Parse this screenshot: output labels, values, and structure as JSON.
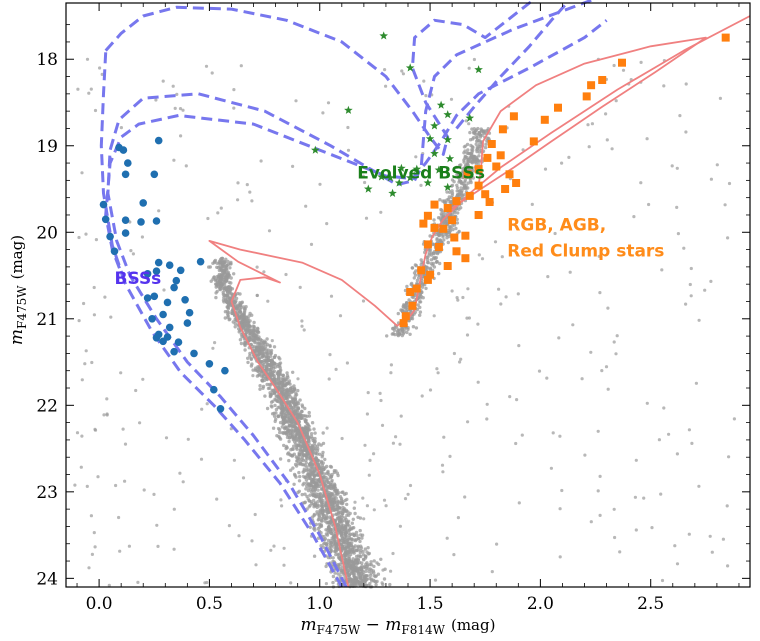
{
  "chart_data": {
    "type": "scatter",
    "xlabel": {
      "m": "m",
      "sub1": "F475W",
      "minus": " − ",
      "m2": "m",
      "sub2": "F814W",
      "unit": "(mag)"
    },
    "ylabel": {
      "m": "m",
      "sub": "F475W",
      "unit": "(mag)"
    },
    "xlim": [
      -0.15,
      2.95
    ],
    "ylim": [
      24.1,
      17.35
    ],
    "y_inverted": true,
    "grid": false,
    "x_ticks": [
      0.0,
      0.5,
      1.0,
      1.5,
      2.0,
      2.5
    ],
    "x_tick_labels": [
      "0.0",
      "0.5",
      "1.0",
      "1.5",
      "2.0",
      "2.5"
    ],
    "y_ticks": [
      18,
      19,
      20,
      21,
      22,
      23,
      24
    ],
    "y_tick_labels": [
      "18",
      "19",
      "20",
      "21",
      "22",
      "23",
      "24"
    ],
    "annotations": {
      "bss": {
        "text": "BSSs",
        "x": 0.07,
        "y": 20.6,
        "color": "#5533ee"
      },
      "evolved": {
        "text": "Evolved BSSs",
        "x": 1.17,
        "y": 19.38,
        "color": "#1a7f1a"
      },
      "rgb1": {
        "text": "RGB, AGB,",
        "x": 1.85,
        "y": 19.98,
        "color": "#ff8c1a"
      },
      "rgb2": {
        "text": "Red Clump stars",
        "x": 1.85,
        "y": 20.28,
        "color": "#ff8c1a"
      }
    },
    "colors": {
      "field": "#9a9a9a",
      "bss": "#1f6fb0",
      "evolved_bss": "#2e8b2e",
      "rgb": "#ff7f0e",
      "red_isochrone": "#f08080",
      "blue_isochrone": "#7777ee"
    },
    "series": [
      {
        "name": "BSSs",
        "marker": "circle",
        "points": [
          [
            0.27,
            18.94
          ],
          [
            0.09,
            19.02
          ],
          [
            0.11,
            19.05
          ],
          [
            0.13,
            19.2
          ],
          [
            0.12,
            19.33
          ],
          [
            0.25,
            19.33
          ],
          [
            0.02,
            19.68
          ],
          [
            0.2,
            19.66
          ],
          [
            0.03,
            19.85
          ],
          [
            0.12,
            19.86
          ],
          [
            0.19,
            19.88
          ],
          [
            0.26,
            19.87
          ],
          [
            0.12,
            20.01
          ],
          [
            0.05,
            20.05
          ],
          [
            0.07,
            20.22
          ],
          [
            0.27,
            20.35
          ],
          [
            0.32,
            20.38
          ],
          [
            0.37,
            20.44
          ],
          [
            0.26,
            20.45
          ],
          [
            0.22,
            20.48
          ],
          [
            0.35,
            20.56
          ],
          [
            0.34,
            20.64
          ],
          [
            0.46,
            20.34
          ],
          [
            0.22,
            20.76
          ],
          [
            0.25,
            20.74
          ],
          [
            0.31,
            20.81
          ],
          [
            0.39,
            20.78
          ],
          [
            0.41,
            20.93
          ],
          [
            0.29,
            20.95
          ],
          [
            0.24,
            21.0
          ],
          [
            0.4,
            21.05
          ],
          [
            0.32,
            21.1
          ],
          [
            0.27,
            21.18
          ],
          [
            0.26,
            21.22
          ],
          [
            0.29,
            21.26
          ],
          [
            0.31,
            21.21
          ],
          [
            0.34,
            21.38
          ],
          [
            0.36,
            21.27
          ],
          [
            0.43,
            21.4
          ],
          [
            0.5,
            21.52
          ],
          [
            0.52,
            21.82
          ],
          [
            0.55,
            22.04
          ],
          [
            0.57,
            21.6
          ]
        ]
      },
      {
        "name": "Evolved BSSs",
        "marker": "star",
        "points": [
          [
            1.29,
            17.73
          ],
          [
            1.41,
            18.1
          ],
          [
            1.72,
            18.12
          ],
          [
            1.13,
            18.59
          ],
          [
            1.55,
            18.53
          ],
          [
            1.58,
            18.64
          ],
          [
            1.68,
            18.68
          ],
          [
            1.52,
            18.77
          ],
          [
            1.5,
            18.92
          ],
          [
            1.58,
            18.93
          ],
          [
            0.98,
            19.05
          ],
          [
            1.52,
            19.09
          ],
          [
            1.59,
            19.15
          ],
          [
            1.37,
            19.26
          ],
          [
            1.44,
            19.27
          ],
          [
            1.54,
            19.28
          ],
          [
            1.28,
            19.36
          ],
          [
            1.32,
            19.37
          ],
          [
            1.41,
            19.37
          ],
          [
            1.49,
            19.43
          ],
          [
            1.36,
            19.43
          ],
          [
            1.22,
            19.5
          ],
          [
            1.33,
            19.55
          ],
          [
            1.58,
            19.48
          ]
        ]
      },
      {
        "name": "RGB, AGB, Red Clump stars",
        "marker": "square",
        "points": [
          [
            2.84,
            17.75
          ],
          [
            2.37,
            18.04
          ],
          [
            2.28,
            18.24
          ],
          [
            2.23,
            18.3
          ],
          [
            2.21,
            18.43
          ],
          [
            2.08,
            18.56
          ],
          [
            2.02,
            18.7
          ],
          [
            1.97,
            18.95
          ],
          [
            1.88,
            18.66
          ],
          [
            1.83,
            18.81
          ],
          [
            1.78,
            18.98
          ],
          [
            1.82,
            19.11
          ],
          [
            1.76,
            19.14
          ],
          [
            1.86,
            19.33
          ],
          [
            1.72,
            19.46
          ],
          [
            1.68,
            19.58
          ],
          [
            1.75,
            19.56
          ],
          [
            1.62,
            19.64
          ],
          [
            1.58,
            19.72
          ],
          [
            1.52,
            19.68
          ],
          [
            1.49,
            19.81
          ],
          [
            1.47,
            19.9
          ],
          [
            1.52,
            19.95
          ],
          [
            1.56,
            19.96
          ],
          [
            1.6,
            19.86
          ],
          [
            1.49,
            20.14
          ],
          [
            1.54,
            20.17
          ],
          [
            1.58,
            20.39
          ],
          [
            1.62,
            20.22
          ],
          [
            1.66,
            20.3
          ],
          [
            1.46,
            20.44
          ],
          [
            1.49,
            20.55
          ],
          [
            1.41,
            20.69
          ],
          [
            1.42,
            20.85
          ],
          [
            1.39,
            20.97
          ],
          [
            1.38,
            21.05
          ],
          [
            1.5,
            20.49
          ],
          [
            1.44,
            20.65
          ],
          [
            1.61,
            20.06
          ],
          [
            1.66,
            20.04
          ],
          [
            1.72,
            19.8
          ],
          [
            1.77,
            19.65
          ],
          [
            1.84,
            19.5
          ],
          [
            1.89,
            19.43
          ],
          [
            1.8,
            19.24
          ],
          [
            1.72,
            19.27
          ],
          [
            1.67,
            19.33
          ]
        ]
      }
    ],
    "isochrones": [
      {
        "color": "red",
        "points": [
          [
            1.13,
            24.1
          ],
          [
            1.07,
            23.4
          ],
          [
            1.0,
            22.8
          ],
          [
            0.9,
            22.2
          ],
          [
            0.8,
            21.8
          ],
          [
            0.72,
            21.5
          ],
          [
            0.64,
            21.1
          ],
          [
            0.6,
            20.8
          ],
          [
            0.64,
            20.55
          ],
          [
            0.75,
            20.52
          ],
          [
            0.82,
            20.58
          ],
          [
            0.74,
            20.48
          ],
          [
            0.63,
            20.34
          ],
          [
            0.5,
            20.1
          ],
          [
            0.64,
            20.2
          ],
          [
            0.92,
            20.35
          ],
          [
            1.1,
            20.55
          ],
          [
            1.25,
            20.85
          ],
          [
            1.35,
            21.08
          ],
          [
            1.4,
            21.0
          ],
          [
            1.43,
            20.9
          ],
          [
            1.46,
            20.5
          ],
          [
            1.48,
            20.25
          ],
          [
            1.51,
            20.05
          ],
          [
            1.56,
            19.85
          ],
          [
            1.68,
            19.55
          ],
          [
            1.82,
            19.25
          ],
          [
            2.05,
            18.85
          ],
          [
            2.35,
            18.35
          ],
          [
            2.65,
            17.9
          ],
          [
            2.95,
            17.5
          ]
        ]
      },
      {
        "color": "red",
        "points": [
          [
            1.6,
            19.72
          ],
          [
            1.73,
            19.5
          ],
          [
            1.88,
            19.25
          ],
          [
            2.05,
            18.95
          ],
          [
            2.28,
            18.55
          ],
          [
            2.52,
            18.15
          ],
          [
            2.75,
            17.75
          ],
          [
            2.5,
            17.85
          ],
          [
            2.2,
            18.05
          ],
          [
            1.98,
            18.3
          ],
          [
            1.82,
            18.6
          ],
          [
            1.74,
            18.95
          ],
          [
            1.73,
            19.3
          ],
          [
            1.72,
            19.45
          ]
        ]
      },
      {
        "color": "blue",
        "points": [
          [
            1.12,
            24.1
          ],
          [
            1.0,
            23.5
          ],
          [
            0.86,
            22.9
          ],
          [
            0.7,
            22.35
          ],
          [
            0.55,
            21.9
          ],
          [
            0.4,
            21.5
          ],
          [
            0.26,
            21.0
          ],
          [
            0.14,
            20.5
          ],
          [
            0.08,
            20.1
          ],
          [
            0.04,
            19.55
          ],
          [
            0.05,
            19.05
          ],
          [
            0.09,
            18.7
          ],
          [
            0.2,
            18.45
          ],
          [
            0.45,
            18.4
          ],
          [
            0.75,
            18.6
          ],
          [
            1.05,
            19.0
          ],
          [
            1.25,
            19.3
          ],
          [
            1.35,
            19.45
          ],
          [
            1.43,
            19.4
          ],
          [
            1.46,
            19.25
          ],
          [
            1.48,
            18.6
          ],
          [
            1.52,
            18.2
          ],
          [
            1.62,
            17.95
          ],
          [
            1.88,
            17.65
          ],
          [
            2.25,
            17.3
          ]
        ]
      },
      {
        "color": "blue",
        "points": [
          [
            1.1,
            24.1
          ],
          [
            0.97,
            23.5
          ],
          [
            0.82,
            22.9
          ],
          [
            0.66,
            22.4
          ],
          [
            0.52,
            22.0
          ],
          [
            0.37,
            21.62
          ],
          [
            0.24,
            21.15
          ],
          [
            0.12,
            20.6
          ],
          [
            0.06,
            20.2
          ],
          [
            0.03,
            19.8
          ],
          [
            0.05,
            19.2
          ],
          [
            0.1,
            18.9
          ],
          [
            0.18,
            18.75
          ],
          [
            0.36,
            18.65
          ],
          [
            0.7,
            18.75
          ],
          [
            1.0,
            19.05
          ],
          [
            1.3,
            19.35
          ],
          [
            1.42,
            19.38
          ],
          [
            1.48,
            19.2
          ],
          [
            1.55,
            18.95
          ],
          [
            1.62,
            18.65
          ],
          [
            1.72,
            18.4
          ],
          [
            1.95,
            18.1
          ],
          [
            2.2,
            17.75
          ],
          [
            2.3,
            17.55
          ]
        ]
      },
      {
        "color": "blue",
        "points": [
          [
            0.03,
            17.9
          ],
          [
            0.1,
            17.7
          ],
          [
            0.2,
            17.5
          ],
          [
            0.35,
            17.4
          ],
          [
            0.6,
            17.42
          ],
          [
            0.85,
            17.55
          ],
          [
            1.1,
            17.8
          ],
          [
            1.3,
            18.2
          ],
          [
            1.42,
            18.6
          ],
          [
            1.5,
            18.9
          ],
          [
            1.56,
            19.1
          ],
          [
            1.58,
            18.9
          ],
          [
            1.48,
            18.5
          ],
          [
            1.42,
            18.1
          ],
          [
            1.43,
            17.75
          ],
          [
            1.52,
            17.55
          ],
          [
            1.65,
            17.6
          ],
          [
            1.75,
            17.75
          ],
          [
            1.85,
            17.55
          ],
          [
            1.95,
            17.35
          ],
          [
            2.0,
            17.25
          ]
        ]
      },
      {
        "color": "blue",
        "points": [
          [
            1.62,
            18.8
          ],
          [
            1.7,
            18.55
          ],
          [
            1.82,
            18.2
          ],
          [
            1.95,
            17.85
          ],
          [
            2.05,
            17.55
          ],
          [
            2.12,
            17.35
          ]
        ]
      },
      {
        "color": "blue",
        "points": [
          [
            0.03,
            17.92
          ],
          [
            0.02,
            18.4
          ],
          [
            0.01,
            19.0
          ],
          [
            0.02,
            19.55
          ],
          [
            0.06,
            20.15
          ],
          [
            0.12,
            20.6
          ]
        ]
      }
    ]
  }
}
